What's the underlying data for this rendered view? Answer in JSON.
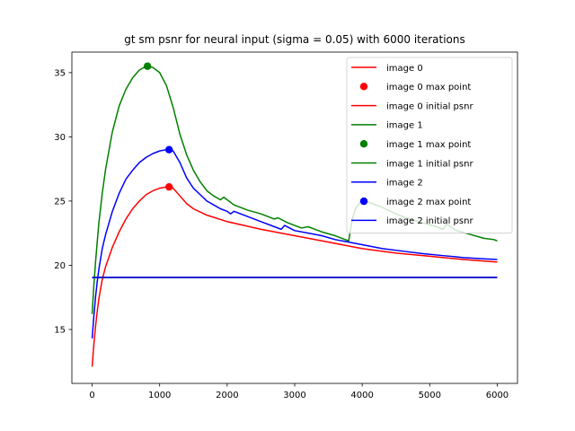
{
  "chart_data": {
    "type": "line",
    "title": "gt sm psnr for neural input (sigma = 0.05) with 6000 iterations",
    "xlabel": "",
    "ylabel": "",
    "xlim": [
      -300,
      6300
    ],
    "ylim": [
      10.8,
      36.6
    ],
    "xticks": [
      0,
      1000,
      2000,
      3000,
      4000,
      5000,
      6000
    ],
    "yticks": [
      15,
      20,
      25,
      30,
      35
    ],
    "grid": false,
    "legend_position": "upper right",
    "series": [
      {
        "name": "image 0",
        "color": "#ff0000",
        "points": [
          [
            0,
            12.1
          ],
          [
            25,
            13.8
          ],
          [
            50,
            15.2
          ],
          [
            75,
            16.4
          ],
          [
            100,
            17.4
          ],
          [
            150,
            18.9
          ],
          [
            200,
            19.9
          ],
          [
            300,
            21.4
          ],
          [
            400,
            22.6
          ],
          [
            500,
            23.6
          ],
          [
            600,
            24.4
          ],
          [
            700,
            25.0
          ],
          [
            800,
            25.5
          ],
          [
            900,
            25.8
          ],
          [
            1000,
            26.0
          ],
          [
            1100,
            26.1
          ],
          [
            1150,
            26.1
          ],
          [
            1200,
            26.0
          ],
          [
            1300,
            25.4
          ],
          [
            1400,
            24.8
          ],
          [
            1500,
            24.4
          ],
          [
            1700,
            23.9
          ],
          [
            2000,
            23.4
          ],
          [
            2500,
            22.8
          ],
          [
            3000,
            22.3
          ],
          [
            3500,
            21.8
          ],
          [
            4000,
            21.3
          ],
          [
            4500,
            20.95
          ],
          [
            5000,
            20.7
          ],
          [
            5500,
            20.45
          ],
          [
            6000,
            20.25
          ]
        ]
      },
      {
        "name": "image 0 max point",
        "color": "#ff0000",
        "marker": "o",
        "points": [
          [
            1140,
            26.1
          ]
        ]
      },
      {
        "name": "image 0 initial psnr",
        "color": "#ff0000",
        "points": [
          [
            0,
            19.05
          ],
          [
            6000,
            19.05
          ]
        ]
      },
      {
        "name": "image 1",
        "color": "#008000",
        "points": [
          [
            0,
            16.2
          ],
          [
            25,
            18.4
          ],
          [
            50,
            20.2
          ],
          [
            75,
            21.8
          ],
          [
            100,
            23.3
          ],
          [
            150,
            25.6
          ],
          [
            200,
            27.5
          ],
          [
            300,
            30.4
          ],
          [
            400,
            32.4
          ],
          [
            500,
            33.7
          ],
          [
            600,
            34.6
          ],
          [
            700,
            35.2
          ],
          [
            800,
            35.5
          ],
          [
            900,
            35.4
          ],
          [
            1000,
            35.0
          ],
          [
            1100,
            34.0
          ],
          [
            1200,
            32.3
          ],
          [
            1300,
            30.2
          ],
          [
            1400,
            28.6
          ],
          [
            1500,
            27.4
          ],
          [
            1600,
            26.5
          ],
          [
            1700,
            25.8
          ],
          [
            1800,
            25.4
          ],
          [
            1900,
            25.1
          ],
          [
            1950,
            25.3
          ],
          [
            2100,
            24.7
          ],
          [
            2300,
            24.3
          ],
          [
            2500,
            24.0
          ],
          [
            2700,
            23.6
          ],
          [
            2750,
            23.7
          ],
          [
            2900,
            23.3
          ],
          [
            3100,
            22.9
          ],
          [
            3200,
            23.0
          ],
          [
            3400,
            22.6
          ],
          [
            3600,
            22.3
          ],
          [
            3800,
            21.9
          ],
          [
            3850,
            23.5
          ],
          [
            3900,
            24.4
          ],
          [
            4000,
            25.1
          ],
          [
            4100,
            24.9
          ],
          [
            4300,
            24.5
          ],
          [
            4500,
            24.0
          ],
          [
            4700,
            23.6
          ],
          [
            4900,
            23.3
          ],
          [
            5100,
            23.0
          ],
          [
            5200,
            22.8
          ],
          [
            5250,
            23.2
          ],
          [
            5400,
            22.7
          ],
          [
            5600,
            22.4
          ],
          [
            5800,
            22.1
          ],
          [
            5950,
            22.0
          ],
          [
            6000,
            21.9
          ]
        ]
      },
      {
        "name": "image 1 max point",
        "color": "#008000",
        "marker": "o",
        "points": [
          [
            820,
            35.5
          ]
        ]
      },
      {
        "name": "image 1 initial psnr",
        "color": "#008000",
        "points": [
          [
            0,
            19.05
          ],
          [
            6000,
            19.05
          ]
        ]
      },
      {
        "name": "image 2",
        "color": "#0000ff",
        "points": [
          [
            0,
            14.3
          ],
          [
            25,
            16.0
          ],
          [
            50,
            17.5
          ],
          [
            75,
            18.7
          ],
          [
            100,
            19.7
          ],
          [
            150,
            21.3
          ],
          [
            200,
            22.4
          ],
          [
            300,
            24.2
          ],
          [
            400,
            25.6
          ],
          [
            500,
            26.7
          ],
          [
            600,
            27.4
          ],
          [
            700,
            28.0
          ],
          [
            800,
            28.4
          ],
          [
            900,
            28.7
          ],
          [
            1000,
            28.9
          ],
          [
            1100,
            29.0
          ],
          [
            1200,
            28.9
          ],
          [
            1300,
            28.0
          ],
          [
            1400,
            26.8
          ],
          [
            1500,
            26.0
          ],
          [
            1600,
            25.5
          ],
          [
            1700,
            25.0
          ],
          [
            1800,
            24.7
          ],
          [
            1900,
            24.4
          ],
          [
            2000,
            24.2
          ],
          [
            2050,
            24.0
          ],
          [
            2100,
            24.2
          ],
          [
            2300,
            23.8
          ],
          [
            2500,
            23.4
          ],
          [
            2700,
            23.0
          ],
          [
            2800,
            22.8
          ],
          [
            2850,
            23.1
          ],
          [
            3000,
            22.7
          ],
          [
            3200,
            22.5
          ],
          [
            3400,
            22.3
          ],
          [
            3600,
            22.0
          ],
          [
            3800,
            21.8
          ],
          [
            4000,
            21.6
          ],
          [
            4300,
            21.3
          ],
          [
            4600,
            21.1
          ],
          [
            4900,
            20.9
          ],
          [
            5200,
            20.75
          ],
          [
            5500,
            20.6
          ],
          [
            5800,
            20.5
          ],
          [
            6000,
            20.45
          ]
        ]
      },
      {
        "name": "image 2 max point",
        "color": "#0000ff",
        "marker": "o",
        "points": [
          [
            1140,
            29.0
          ]
        ]
      },
      {
        "name": "image 2 initial psnr",
        "color": "#0000ff",
        "points": [
          [
            0,
            19.05
          ],
          [
            6000,
            19.05
          ]
        ]
      }
    ]
  }
}
